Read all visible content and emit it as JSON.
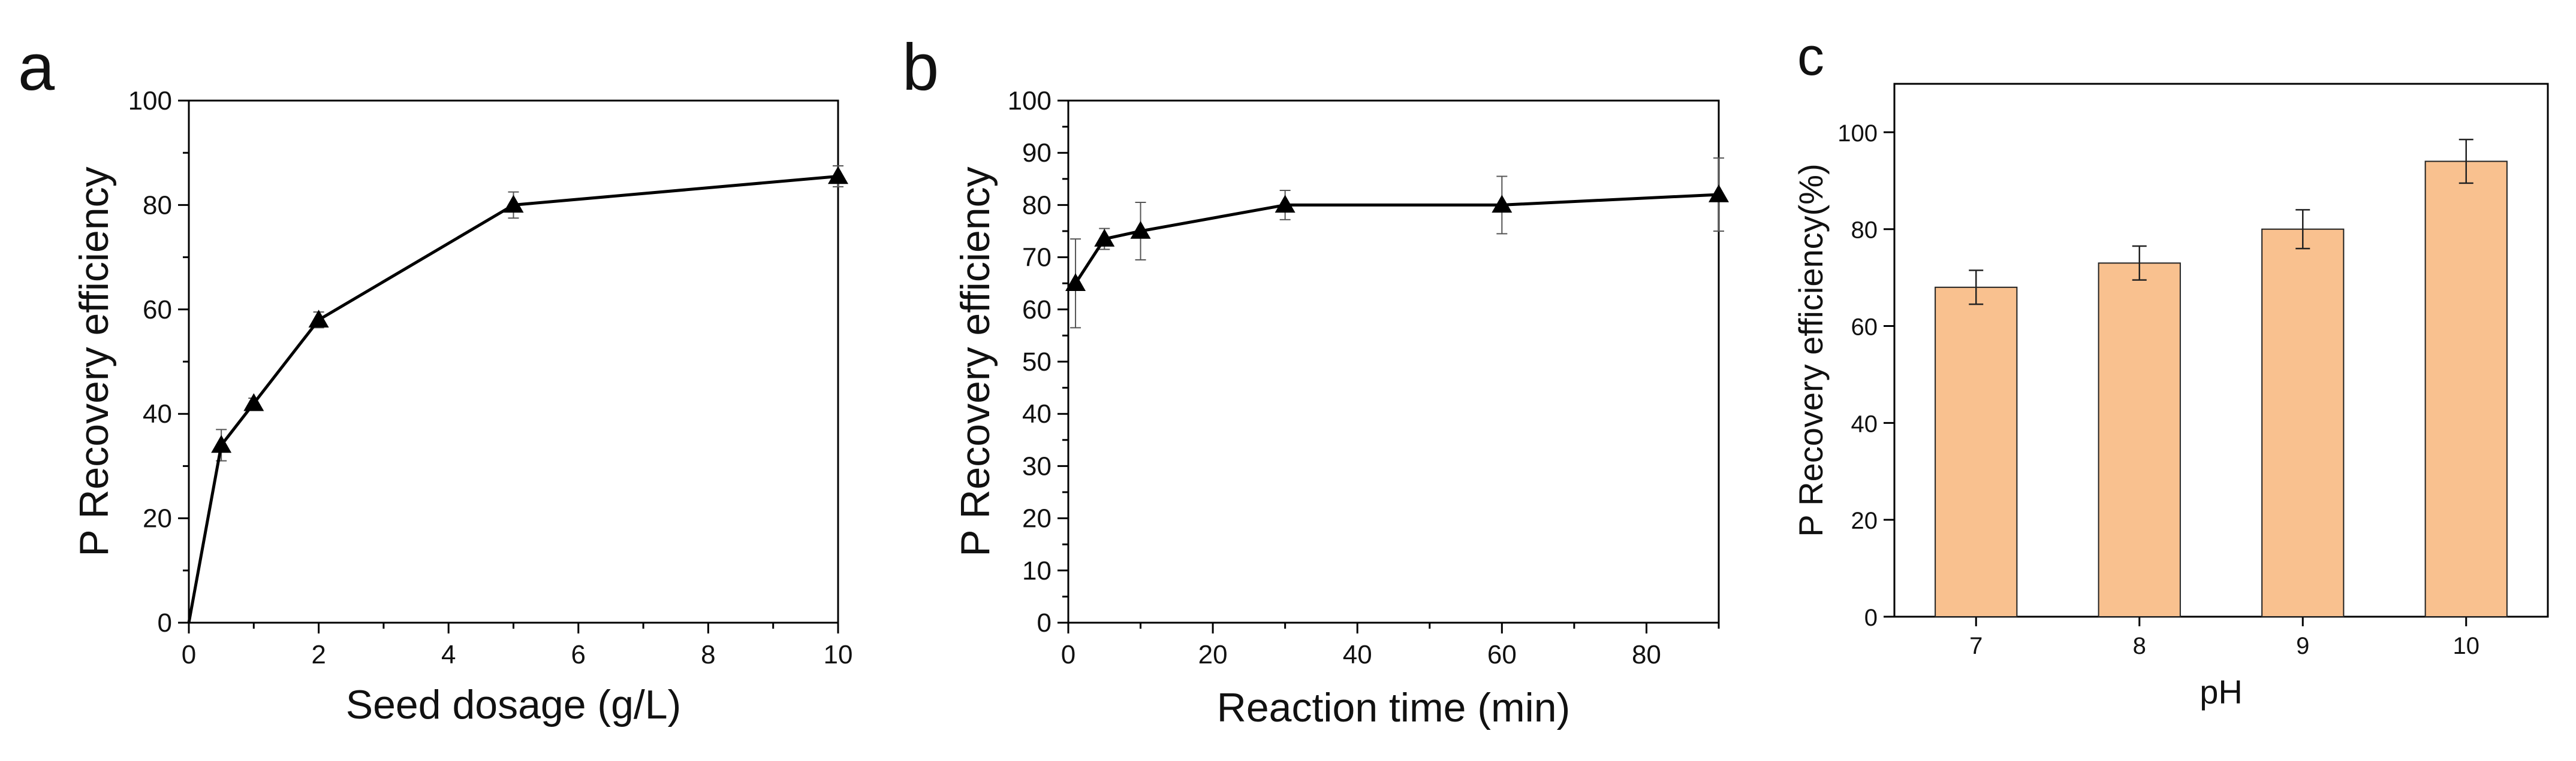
{
  "colors": {
    "line": "#000000",
    "marker": "#000000",
    "error_bar": "#555555",
    "bar_fill": "#f9c18f",
    "bar_edge": "#222222"
  },
  "chart_data": [
    {
      "panel": "a",
      "type": "line",
      "marker": "triangle",
      "title": "",
      "xlabel": "Seed dosage (g/L)",
      "ylabel": "P Recovery efficiency",
      "xlim": [
        0,
        10
      ],
      "ylim": [
        0,
        100
      ],
      "xticks": [
        0,
        2,
        4,
        6,
        8,
        10
      ],
      "yticks": [
        0,
        20,
        40,
        60,
        80,
        100
      ],
      "x": [
        0,
        0.5,
        1,
        2,
        5,
        10
      ],
      "y": [
        0,
        34,
        42,
        58,
        80,
        85.5
      ],
      "yerr": [
        0,
        3,
        1,
        1.5,
        2.5,
        2
      ]
    },
    {
      "panel": "b",
      "type": "line",
      "marker": "triangle",
      "title": "",
      "xlabel": "Reaction time (min)",
      "ylabel": "P Recovery efficiency",
      "xlim": [
        0,
        90
      ],
      "ylim": [
        0,
        100
      ],
      "xticks": [
        0,
        20,
        40,
        60,
        80
      ],
      "yticks": [
        0,
        10,
        20,
        30,
        40,
        50,
        60,
        70,
        80,
        90,
        100
      ],
      "x": [
        1,
        5,
        10,
        30,
        60,
        90
      ],
      "y": [
        65,
        73.5,
        75,
        80,
        80,
        82
      ],
      "yerr": [
        8.5,
        2,
        5.5,
        2.8,
        5.5,
        7
      ]
    },
    {
      "panel": "c",
      "type": "bar",
      "title": "",
      "xlabel": "pH",
      "ylabel": "P Recovery efficiency(%)",
      "ylim": [
        0,
        110
      ],
      "yticks": [
        0,
        20,
        40,
        60,
        80,
        100
      ],
      "categories": [
        "7",
        "8",
        "9",
        "10"
      ],
      "values": [
        68,
        73,
        80,
        94
      ],
      "yerr": [
        3.5,
        3.5,
        4,
        4.5
      ]
    }
  ]
}
